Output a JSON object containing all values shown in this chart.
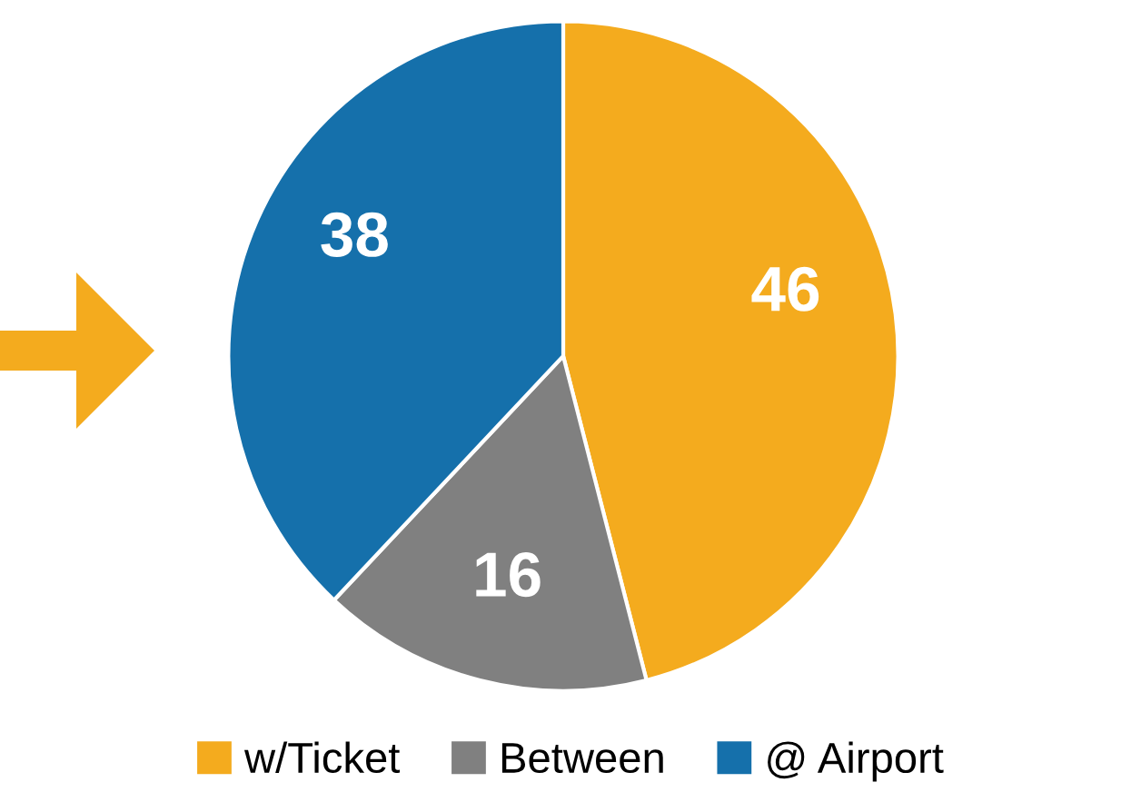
{
  "chart_data": {
    "type": "pie",
    "categories": [
      "w/Ticket",
      "Between",
      "@ Airport"
    ],
    "values": [
      46,
      16,
      38
    ],
    "colors": [
      "#f4ab1e",
      "#808080",
      "#1570ab"
    ],
    "data_labels": true,
    "legend": "bottom"
  }
}
